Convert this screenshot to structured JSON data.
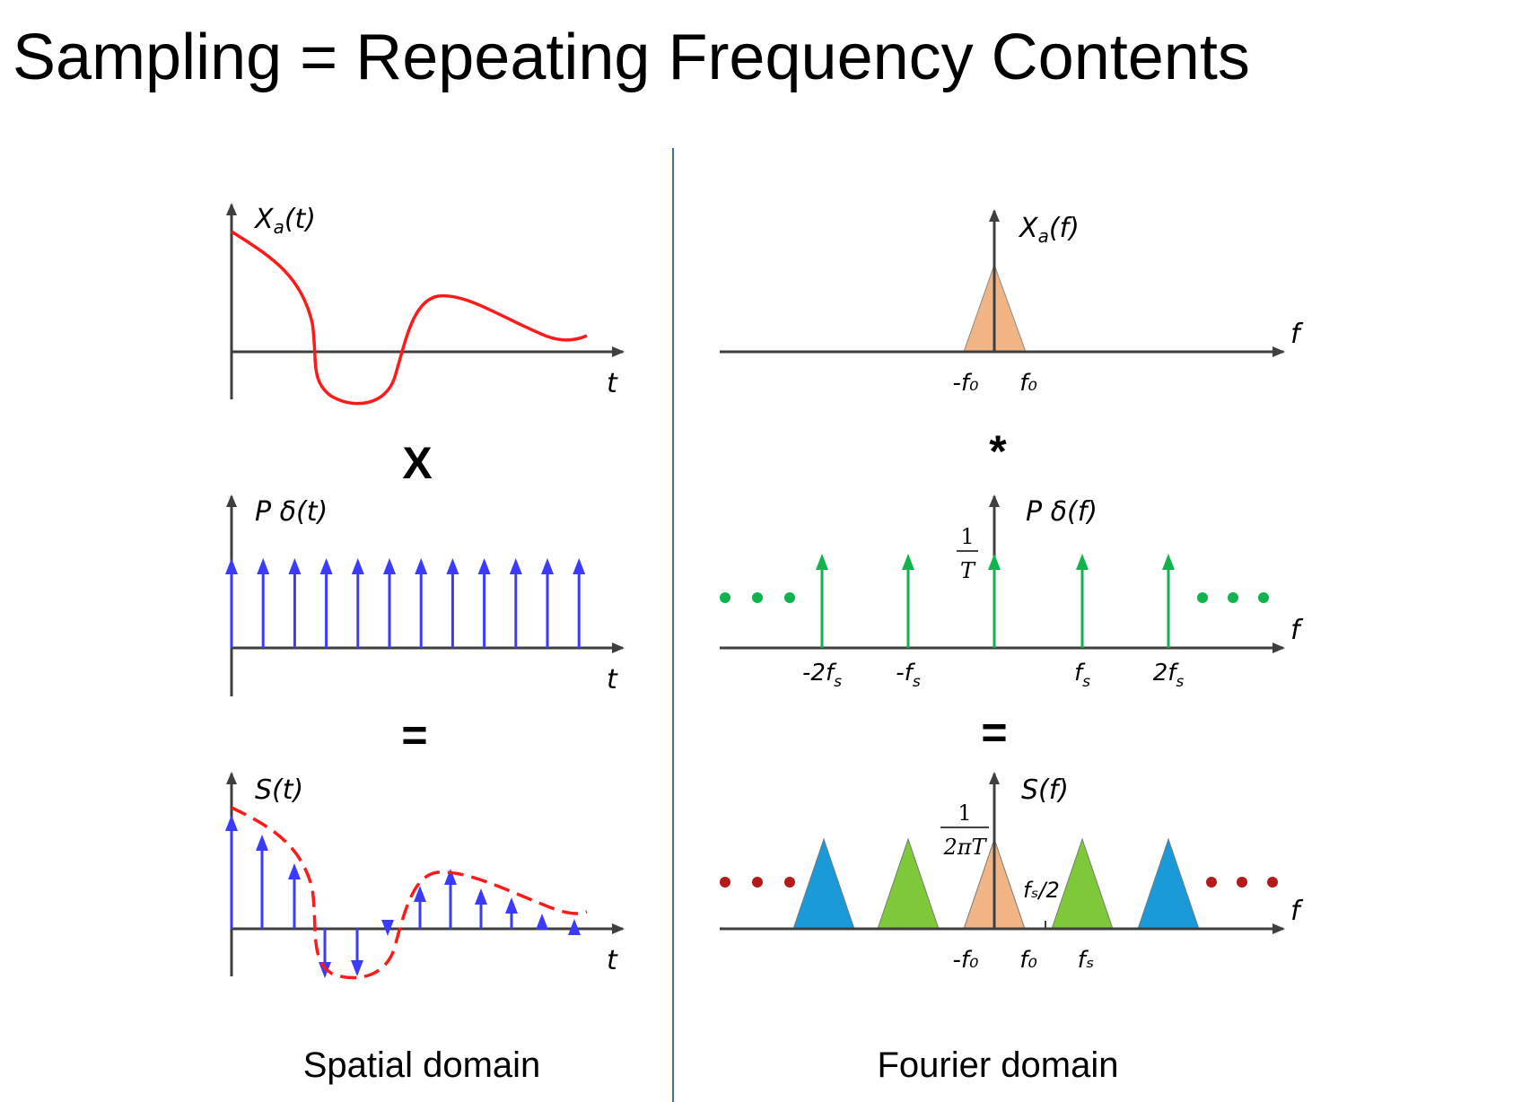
{
  "title": "Sampling = Repeating Frequency Contents",
  "colors": {
    "axis": "#3f3f3f",
    "signal": "#ff1a1a",
    "impulse_time": "#3b3bff",
    "impulse_freq": "#12b24e",
    "baseband": "#f1b484",
    "replica_near": "#7dc93a",
    "replica_far": "#1a9ad8",
    "dots_freq": "#12b24e",
    "dots_result": "#b31a1a",
    "divider": "#3a6cc1"
  },
  "icons": {
    "axis_arrow": "arrowhead-icon",
    "dots": "ellipsis-dots-icon"
  },
  "spatial": {
    "caption": "Spatial domain",
    "operator_multiply": "X",
    "operator_equals": "=",
    "signal": {
      "label_main": "X",
      "label_sub": "a",
      "label_arg": "(t)",
      "axis_label": "t"
    },
    "impulse_train": {
      "label_main": "P ",
      "label_delta": "δ",
      "label_arg": "(t)",
      "axis_label": "t",
      "count": 12
    },
    "sampled": {
      "label": "S(t)",
      "axis_label": "t"
    }
  },
  "fourier": {
    "caption": "Fourier domain",
    "operator_convolve": "*",
    "operator_equals": "=",
    "spectrum": {
      "label_main": "X",
      "label_sub": "a",
      "label_arg": "(f)",
      "axis_label": "f",
      "tick_neg": "-f₀",
      "tick_pos": "f₀"
    },
    "impulse_train": {
      "label_main": "P ",
      "label_delta": "δ",
      "label_arg": "(f)",
      "axis_label": "f",
      "height_num": "1",
      "height_den": "T",
      "ticks": [
        {
          "base": "-2f",
          "sub": "s"
        },
        {
          "base": "-f",
          "sub": "s"
        },
        {
          "base": "f",
          "sub": "s"
        },
        {
          "base": "2f",
          "sub": "s"
        }
      ]
    },
    "sampled": {
      "label": "S(f)",
      "axis_label": "f",
      "height_num": "1",
      "height_den": "2πT",
      "half_label": "fₛ/2",
      "tick_neg": "-f₀",
      "tick_pos": "f₀",
      "tick_fs": "fₛ"
    }
  }
}
